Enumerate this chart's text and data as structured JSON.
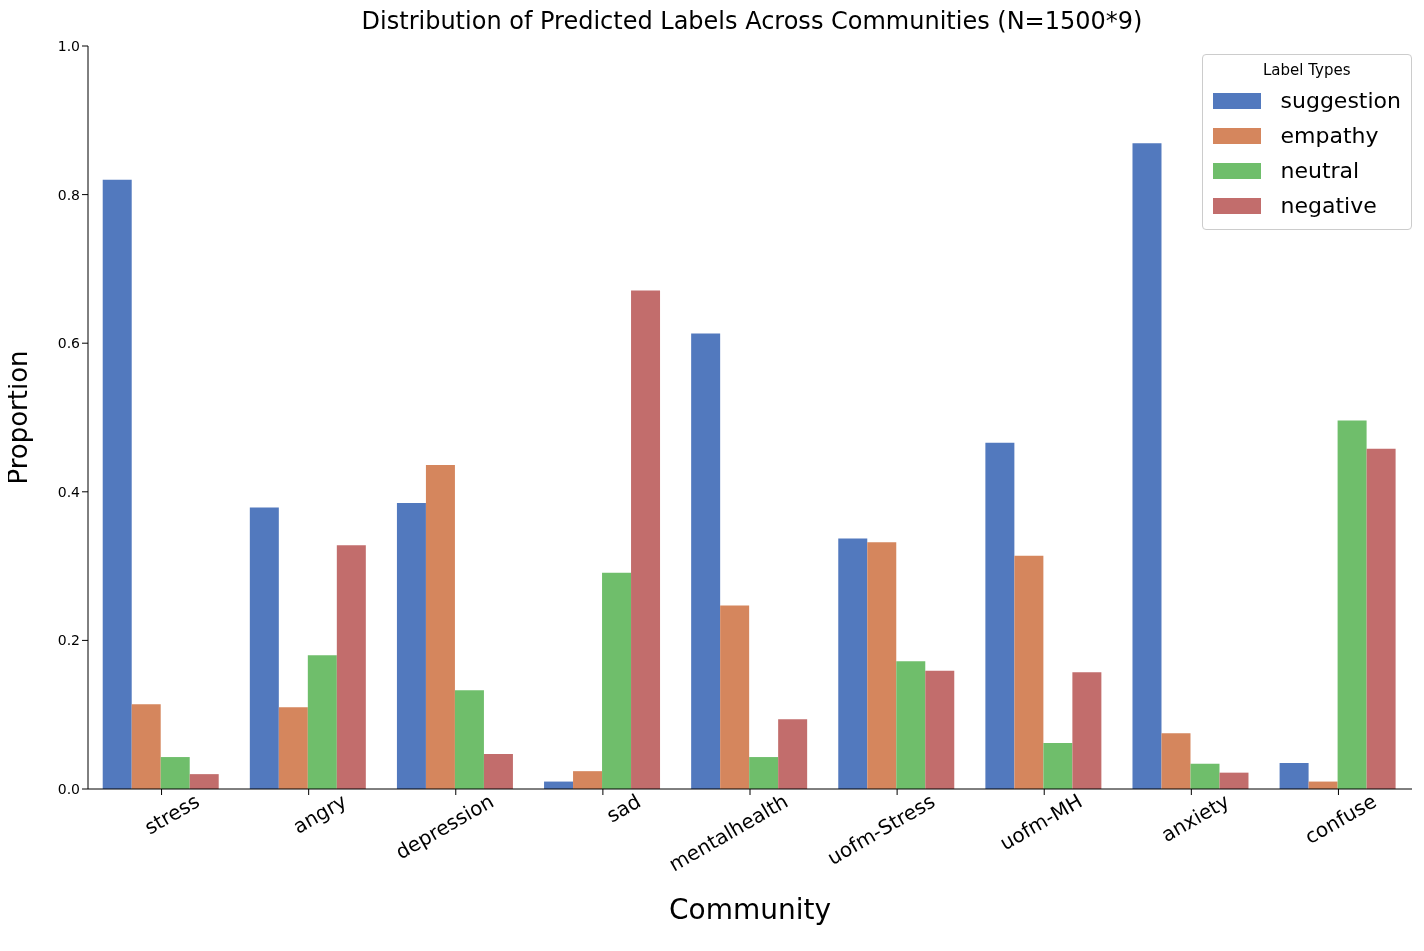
{
  "chart_data": {
    "type": "bar",
    "title": "Distribution of Predicted Labels Across Communities (N=1500*9)",
    "xlabel": "Community",
    "ylabel": "Proportion",
    "legend_title": "Label Types",
    "categories": [
      "stress",
      "angry",
      "depression",
      "sad",
      "mentalhealth",
      "uofm-Stress",
      "uofm-MH",
      "anxiety",
      "confuse"
    ],
    "series": [
      {
        "name": "suggestion",
        "color": "#5279be",
        "values": [
          0.82,
          0.379,
          0.385,
          0.01,
          0.613,
          0.337,
          0.466,
          0.869,
          0.035
        ]
      },
      {
        "name": "empathy",
        "color": "#d5865d",
        "values": [
          0.114,
          0.11,
          0.436,
          0.024,
          0.247,
          0.332,
          0.314,
          0.075,
          0.01
        ]
      },
      {
        "name": "neutral",
        "color": "#6fbe6b",
        "values": [
          0.043,
          0.18,
          0.133,
          0.291,
          0.043,
          0.172,
          0.062,
          0.034,
          0.496
        ]
      },
      {
        "name": "negative",
        "color": "#c26d6c",
        "values": [
          0.02,
          0.328,
          0.047,
          0.671,
          0.094,
          0.159,
          0.157,
          0.022,
          0.458
        ]
      }
    ],
    "ylim": [
      0,
      1
    ],
    "yticks": [
      {
        "value": 0,
        "label": "0.0"
      },
      {
        "value": 0.2,
        "label": "0.2"
      },
      {
        "value": 0.4,
        "label": "0.4"
      },
      {
        "value": 0.6,
        "label": "0.6"
      },
      {
        "value": 0.8,
        "label": "0.8"
      },
      {
        "value": 1,
        "label": "1.0"
      }
    ],
    "grid": false,
    "legend": "top right"
  }
}
